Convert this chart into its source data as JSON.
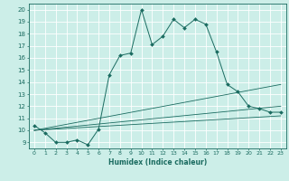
{
  "xlabel": "Humidex (Indice chaleur)",
  "background_color": "#cceee8",
  "line_color": "#1a6b60",
  "grid_color": "#ffffff",
  "xlim": [
    -0.5,
    23.5
  ],
  "ylim": [
    8.5,
    20.5
  ],
  "yticks": [
    9,
    10,
    11,
    12,
    13,
    14,
    15,
    16,
    17,
    18,
    19,
    20
  ],
  "xticks": [
    0,
    1,
    2,
    3,
    4,
    5,
    6,
    7,
    8,
    9,
    10,
    11,
    12,
    13,
    14,
    15,
    16,
    17,
    18,
    19,
    20,
    21,
    22,
    23
  ],
  "main_line_x": [
    0,
    1,
    2,
    3,
    4,
    5,
    6,
    7,
    8,
    9,
    10,
    11,
    12,
    13,
    14,
    15,
    16,
    17,
    18,
    19,
    20,
    21,
    22,
    23
  ],
  "main_line_y": [
    10.4,
    9.8,
    9.0,
    9.0,
    9.2,
    8.8,
    10.1,
    14.6,
    16.2,
    16.4,
    20.0,
    17.1,
    17.8,
    19.2,
    18.5,
    19.2,
    18.8,
    16.5,
    13.8,
    13.2,
    12.0,
    11.8,
    11.5,
    11.5
  ],
  "extra_lines": [
    {
      "x": [
        0,
        23
      ],
      "y": [
        10.0,
        13.8
      ]
    },
    {
      "x": [
        0,
        23
      ],
      "y": [
        10.0,
        12.0
      ]
    },
    {
      "x": [
        0,
        23
      ],
      "y": [
        10.0,
        11.2
      ]
    }
  ]
}
